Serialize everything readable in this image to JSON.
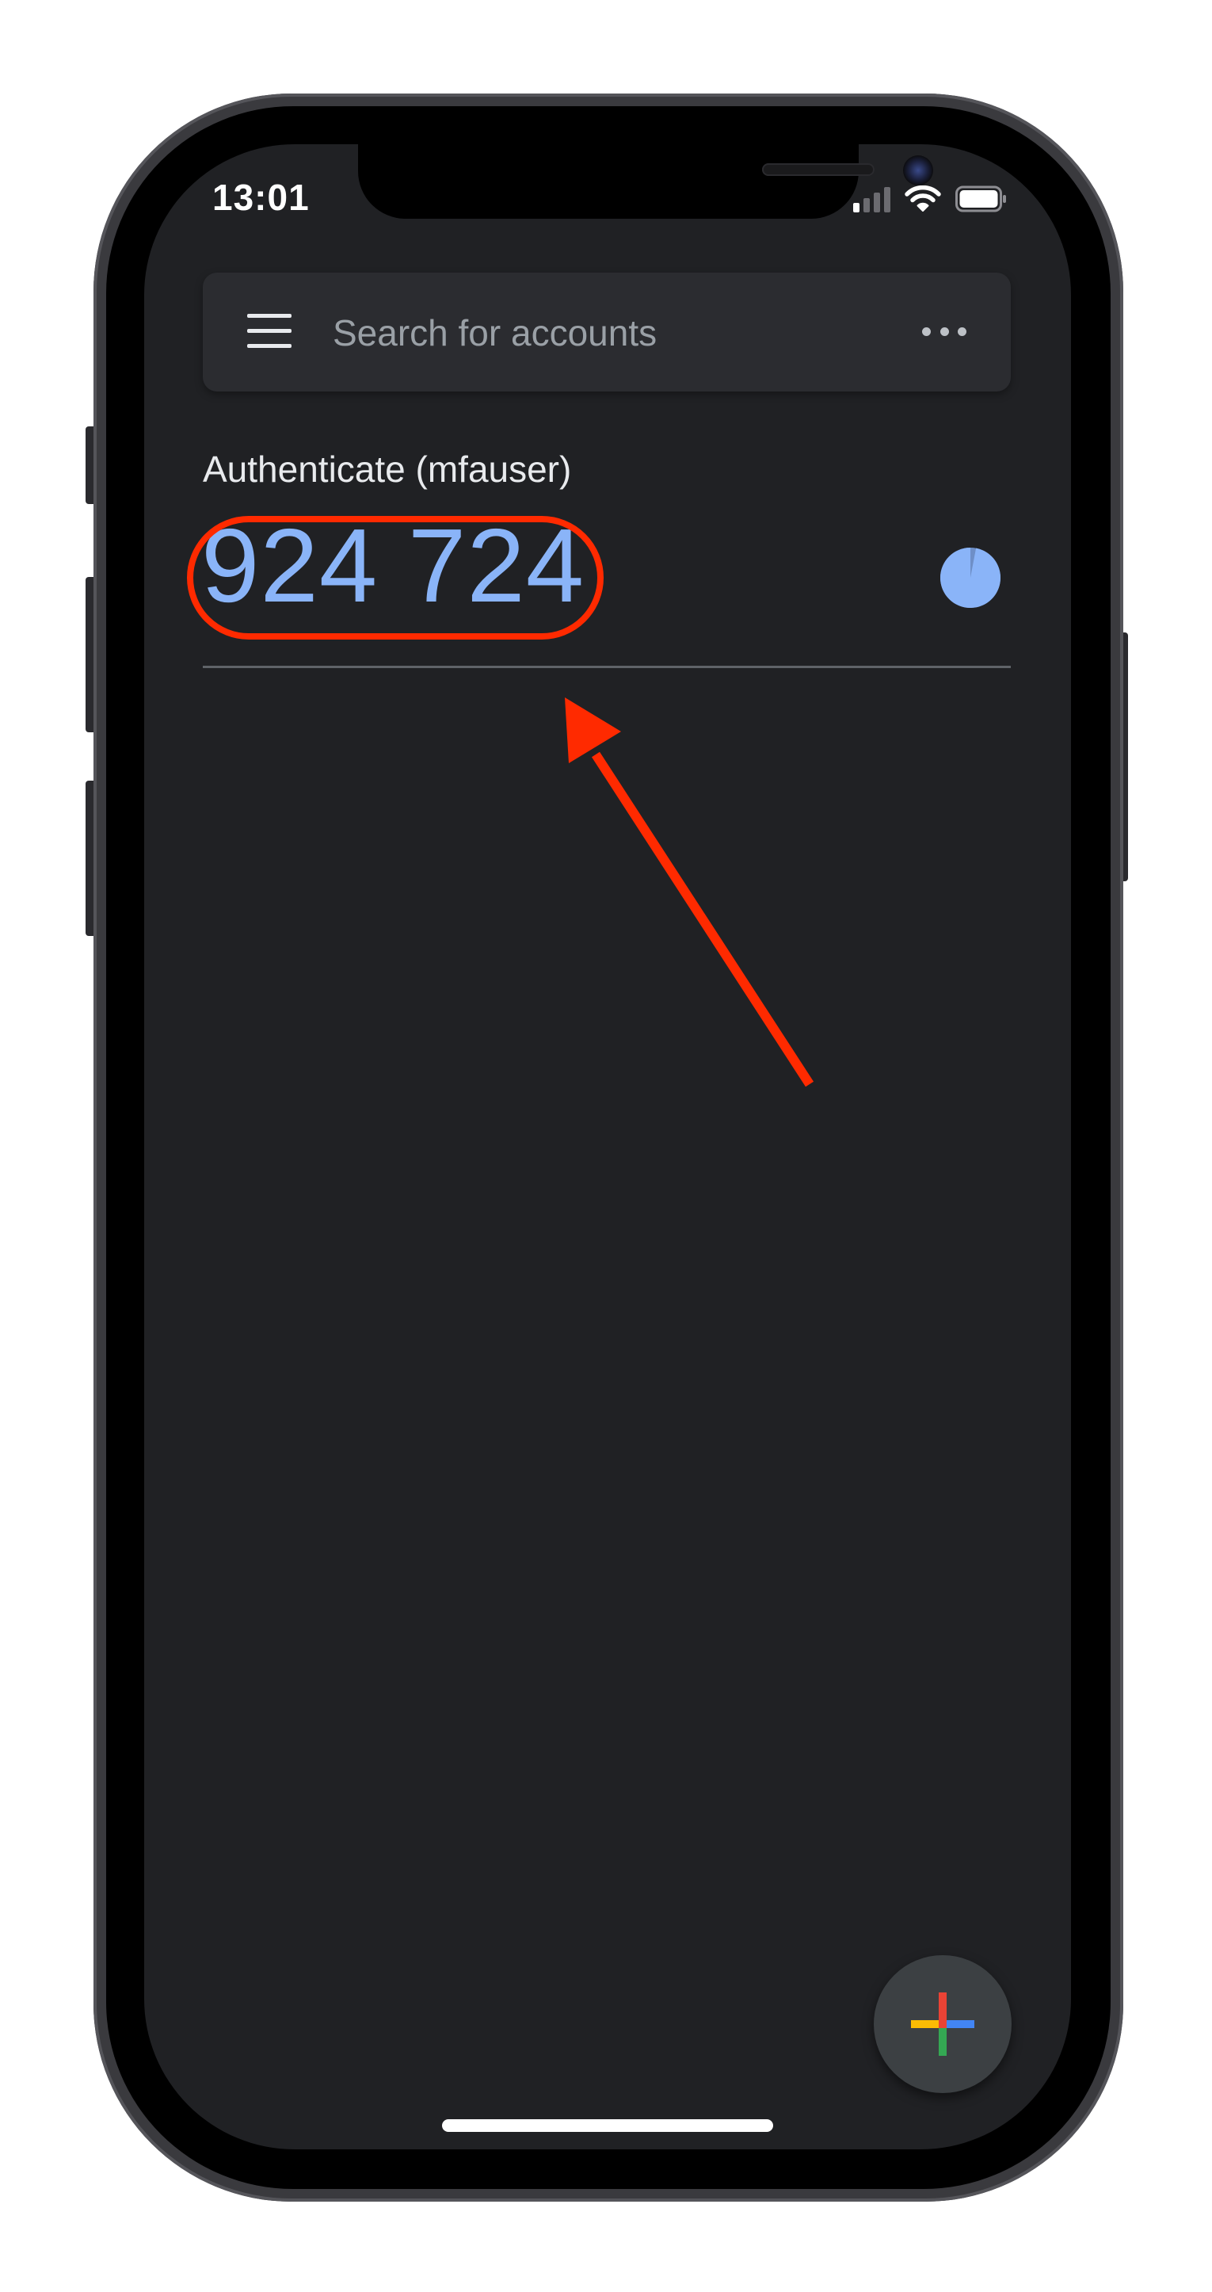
{
  "status_bar": {
    "time": "13:01",
    "signal_bars_active": 1,
    "signal_bars_total": 4
  },
  "search": {
    "placeholder": "Search for accounts",
    "value": ""
  },
  "account": {
    "name": "Authenticate (mfauser)",
    "code": "924 724",
    "timer_remaining_fraction": 0.97
  },
  "colors": {
    "background": "#202124",
    "code": "#8ab4f8",
    "annotation": "#ff2a00",
    "fab_red": "#ea4335",
    "fab_blue": "#4285f4",
    "fab_green": "#34a853",
    "fab_yellow": "#fbbc04"
  },
  "icons": {
    "menu": "hamburger-menu-icon",
    "more": "more-horizontal-icon",
    "timer": "countdown-pie-icon",
    "add": "google-plus-icon",
    "signal": "cellular-signal-icon",
    "wifi": "wifi-icon",
    "battery": "battery-icon"
  }
}
